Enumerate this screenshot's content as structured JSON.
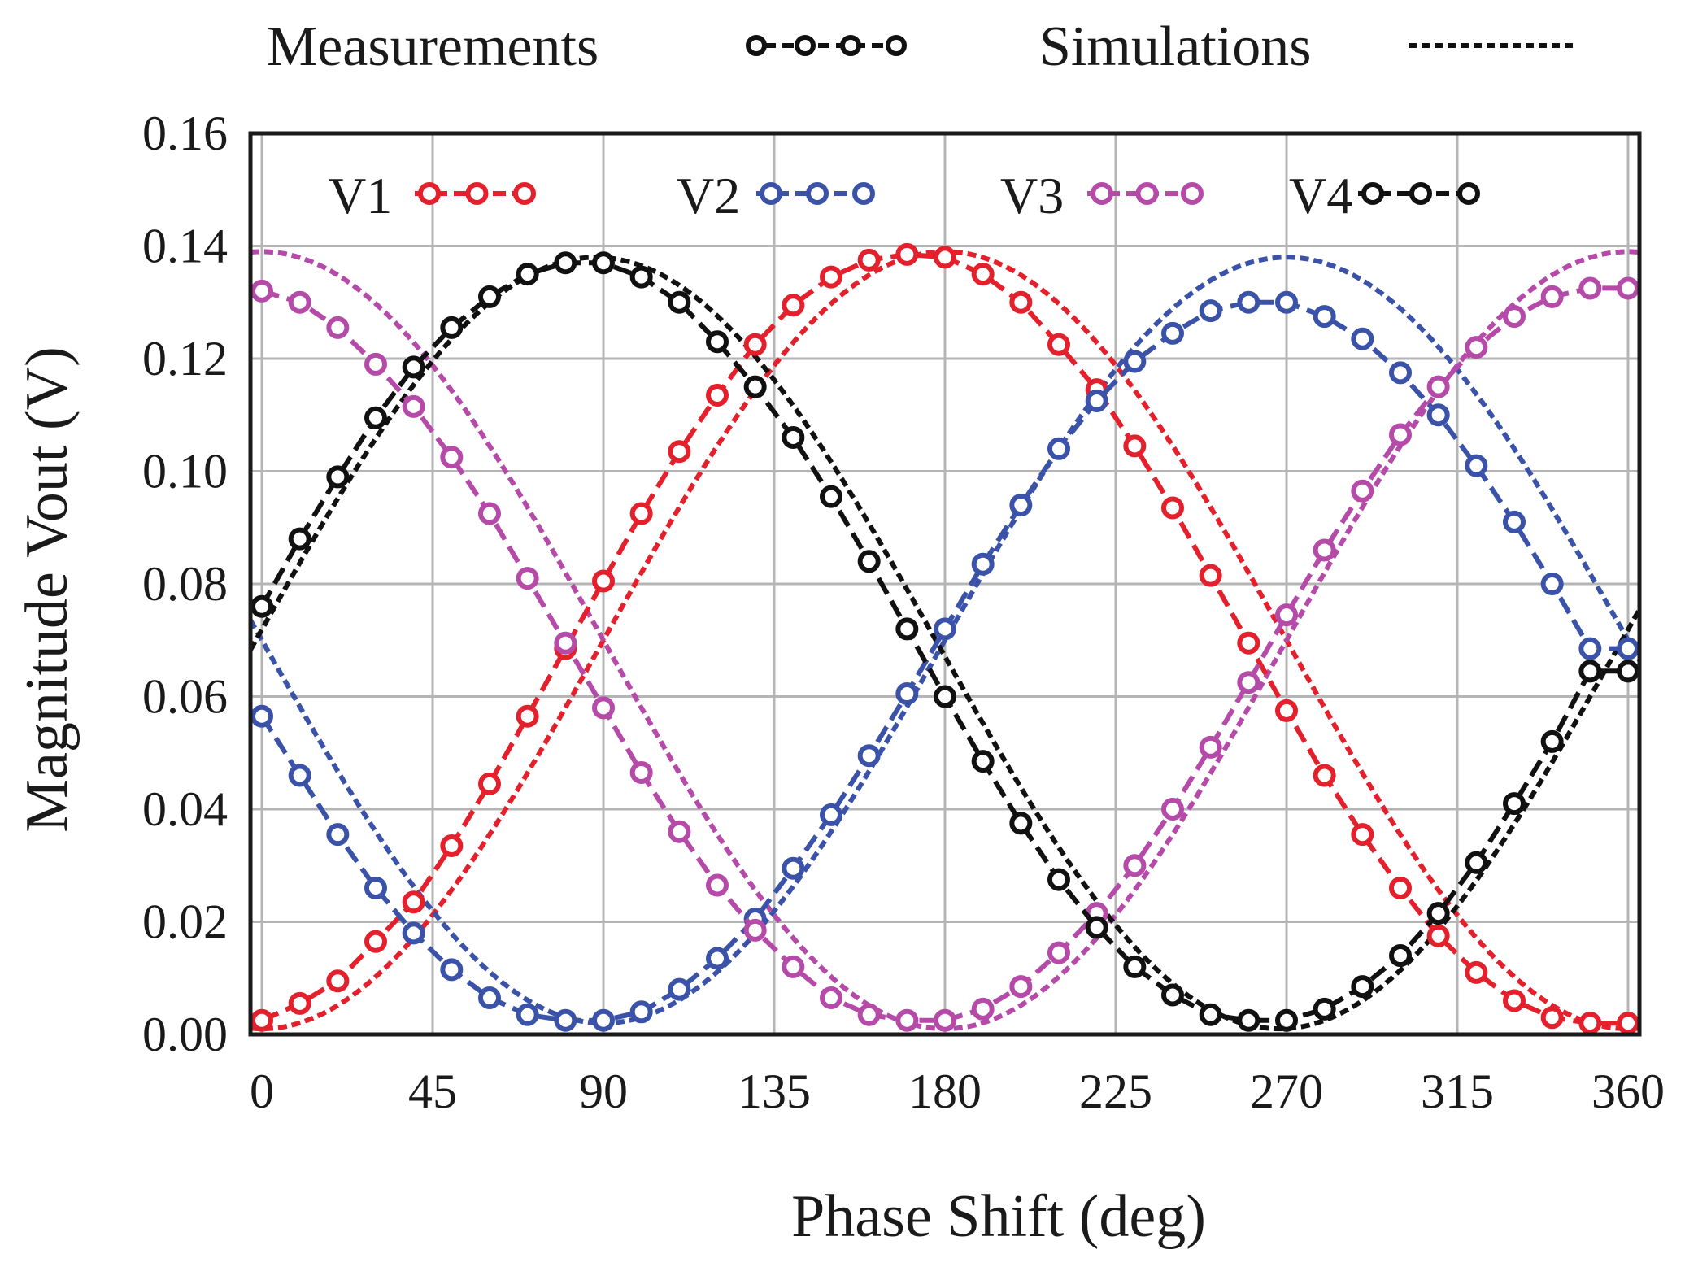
{
  "chart_data": {
    "type": "line",
    "title": "",
    "xlabel": "Phase Shift (deg)",
    "ylabel": "Magnitude Vout (V)",
    "xlim": [
      -3,
      363
    ],
    "ylim": [
      0,
      0.16
    ],
    "xticks": [
      0,
      45,
      90,
      135,
      180,
      225,
      270,
      315,
      360
    ],
    "xtick_labels": [
      "0",
      "45",
      "90",
      "135",
      "180",
      "225",
      "270",
      "315",
      "360"
    ],
    "yticks": [
      0,
      0.02,
      0.04,
      0.06,
      0.08,
      0.1,
      0.12,
      0.14,
      0.16
    ],
    "ytick_labels": [
      "0.00",
      "0.02",
      "0.04",
      "0.06",
      "0.08",
      "0.10",
      "0.12",
      "0.14",
      "0.16"
    ],
    "grid": true,
    "legend_style": {
      "measurements_label": "Measurements",
      "simulations_label": "Simulations",
      "placement": "top, above plot"
    },
    "measurement_x": [
      0,
      10,
      20,
      30,
      40,
      50,
      60,
      70,
      80,
      90,
      100,
      110,
      120,
      130,
      140,
      150,
      160,
      170,
      180,
      190,
      200,
      210,
      220,
      230,
      240,
      250,
      260,
      270,
      280,
      290,
      300,
      310,
      320,
      330,
      340,
      350,
      360
    ],
    "series": [
      {
        "name": "V1",
        "color": "#e3202b",
        "measurements": [
          0.0025,
          0.0055,
          0.0095,
          0.0165,
          0.0235,
          0.0335,
          0.0445,
          0.0565,
          0.0685,
          0.0805,
          0.0925,
          0.1035,
          0.1135,
          0.1225,
          0.1295,
          0.1345,
          0.1375,
          0.1385,
          0.138,
          0.135,
          0.13,
          0.1225,
          0.1145,
          0.1045,
          0.0935,
          0.0815,
          0.0695,
          0.0575,
          0.046,
          0.0355,
          0.026,
          0.0175,
          0.011,
          0.006,
          0.003,
          0.002,
          0.002
        ],
        "simulation": {
          "offset": 0.07,
          "amplitude": 0.069,
          "peak_deg": 180
        }
      },
      {
        "name": "V2",
        "color": "#3a52a8",
        "measurements": [
          0.0565,
          0.046,
          0.0355,
          0.026,
          0.018,
          0.0115,
          0.0065,
          0.0035,
          0.0025,
          0.0025,
          0.004,
          0.008,
          0.0135,
          0.0205,
          0.0295,
          0.039,
          0.0495,
          0.0605,
          0.072,
          0.0835,
          0.094,
          0.104,
          0.1125,
          0.1195,
          0.1245,
          0.1285,
          0.13,
          0.13,
          0.1275,
          0.1235,
          0.1175,
          0.11,
          0.101,
          0.091,
          0.08,
          0.0685,
          0.0685
        ],
        "simulation": {
          "offset": 0.07,
          "amplitude": 0.068,
          "peak_deg": 270
        }
      },
      {
        "name": "V3",
        "color": "#b54aa8",
        "measurements": [
          0.132,
          0.13,
          0.1255,
          0.119,
          0.1115,
          0.1025,
          0.0925,
          0.081,
          0.0695,
          0.058,
          0.0465,
          0.036,
          0.0265,
          0.0185,
          0.012,
          0.0065,
          0.0035,
          0.0025,
          0.0025,
          0.0045,
          0.0085,
          0.0145,
          0.0215,
          0.03,
          0.04,
          0.051,
          0.0625,
          0.0745,
          0.086,
          0.0965,
          0.1065,
          0.115,
          0.122,
          0.1275,
          0.131,
          0.1325,
          0.1325
        ],
        "simulation": {
          "offset": 0.07,
          "amplitude": 0.069,
          "peak_deg": 0
        }
      },
      {
        "name": "V4",
        "color": "#111111",
        "measurements": [
          0.076,
          0.088,
          0.099,
          0.1095,
          0.1185,
          0.1255,
          0.131,
          0.135,
          0.137,
          0.137,
          0.1345,
          0.13,
          0.123,
          0.115,
          0.106,
          0.0955,
          0.084,
          0.072,
          0.06,
          0.0485,
          0.0375,
          0.0275,
          0.019,
          0.012,
          0.007,
          0.0035,
          0.0025,
          0.0025,
          0.0045,
          0.0085,
          0.014,
          0.0215,
          0.0305,
          0.041,
          0.052,
          0.0645,
          0.0645
        ],
        "simulation": {
          "offset": 0.0695,
          "amplitude": 0.0685,
          "peak_deg": 88
        }
      }
    ]
  }
}
